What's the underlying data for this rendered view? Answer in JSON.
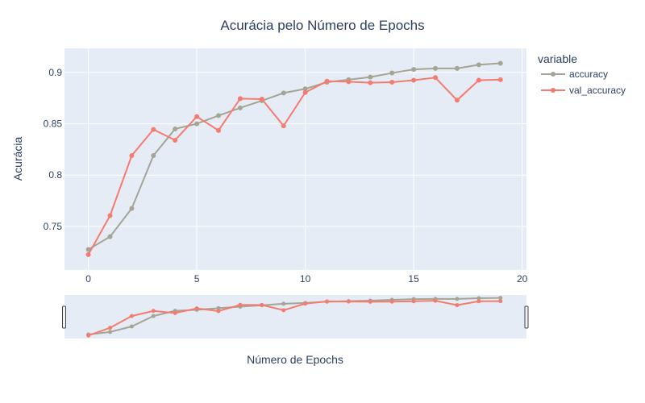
{
  "chart_data": {
    "type": "line",
    "title": "Acurácia pelo Número de Epochs",
    "xlabel": "Número de Epochs",
    "ylabel": "Acurácia",
    "legend_title": "variable",
    "legend_position": "top-right",
    "grid": true,
    "range_slider": true,
    "xlim": [
      -1.1,
      20.2
    ],
    "ylim": [
      0.7075,
      0.9235
    ],
    "x_ticks": [
      0,
      5,
      10,
      15,
      20
    ],
    "y_ticks": [
      0.75,
      0.8,
      0.85,
      0.9
    ],
    "x": [
      0,
      1,
      2,
      3,
      4,
      5,
      6,
      7,
      8,
      9,
      10,
      11,
      12,
      13,
      14,
      15,
      16,
      17,
      18,
      19
    ],
    "series": [
      {
        "name": "accuracy",
        "color": "#a4a595",
        "values": [
          0.7275,
          0.74,
          0.7675,
          0.819,
          0.845,
          0.85,
          0.858,
          0.8655,
          0.8725,
          0.88,
          0.884,
          0.8905,
          0.893,
          0.8955,
          0.8995,
          0.903,
          0.904,
          0.904,
          0.9075,
          0.909
        ]
      },
      {
        "name": "val_accuracy",
        "color": "#f47c6f",
        "values": [
          0.7225,
          0.7605,
          0.819,
          0.8445,
          0.834,
          0.857,
          0.8435,
          0.8745,
          0.874,
          0.848,
          0.8805,
          0.8915,
          0.891,
          0.89,
          0.8905,
          0.8925,
          0.895,
          0.873,
          0.8925,
          0.893
        ]
      }
    ]
  }
}
